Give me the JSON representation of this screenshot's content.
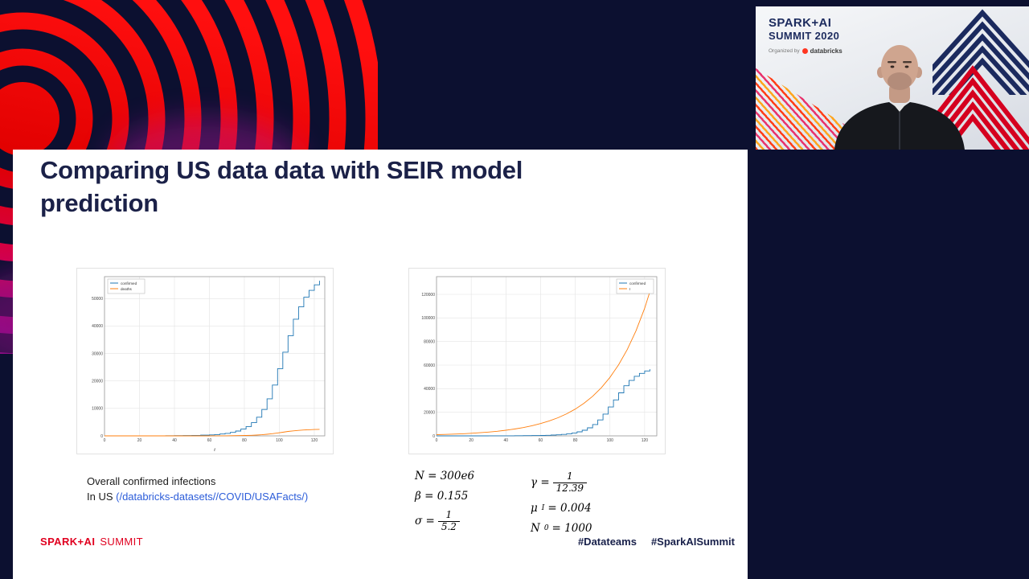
{
  "colors": {
    "background_navy": "#0c1030",
    "accent_red": "#e0001f",
    "title_navy": "#1b2148",
    "link_blue": "#2b5cd9",
    "series_blue": "#1f77b4",
    "series_orange": "#ff7f0e"
  },
  "slide": {
    "title_line1": "Comparing US data data with SEIR model",
    "title_line2": "prediction",
    "caption": {
      "line1": "Overall confirmed infections",
      "line2_prefix": "In US ",
      "link": "(/databricks-datasets//COVID/USAFacts/)"
    },
    "formulas": {
      "f1": "N = 300e6",
      "f2": "β = 0.155",
      "sigma_lhs": "σ =",
      "sigma_num": "1",
      "sigma_den": "5.2",
      "gamma_lhs": "γ =",
      "gamma_num": "1",
      "gamma_den": "12.39",
      "mu_base": "μ",
      "mu_sub": "I",
      "mu_rhs": "= 0.004",
      "n0_base": "N",
      "n0_sub": "0",
      "n0_rhs": "= 1000"
    },
    "footer": {
      "logo_bold": "SPARK+AI",
      "logo_light": "SUMMIT",
      "hashtag1": "#Datateams",
      "hashtag2": "#SparkAISummit"
    }
  },
  "video": {
    "brand_line1": "SPARK+AI",
    "brand_line2": "SUMMIT 2020",
    "organized_by": "Organized by",
    "org_name": "databricks"
  },
  "chart_data": [
    {
      "type": "line",
      "title": "",
      "xlabel": "t",
      "ylabel": "",
      "xlim": [
        0,
        126
      ],
      "ylim": [
        0,
        58000
      ],
      "xticks": [
        0,
        20,
        40,
        60,
        80,
        100,
        120
      ],
      "yticks": [
        0,
        10000,
        20000,
        30000,
        40000,
        50000
      ],
      "grid": true,
      "legend_position": "upper-left",
      "series": [
        {
          "name": "confirmed",
          "color": "#1f77b4",
          "step": true,
          "x": [
            0,
            5,
            10,
            15,
            20,
            25,
            30,
            35,
            40,
            45,
            50,
            55,
            60,
            63,
            66,
            69,
            72,
            75,
            78,
            81,
            84,
            87,
            90,
            93,
            96,
            99,
            102,
            105,
            108,
            111,
            114,
            117,
            120,
            123
          ],
          "y": [
            1,
            2,
            5,
            8,
            15,
            25,
            40,
            60,
            90,
            130,
            180,
            250,
            350,
            480,
            660,
            900,
            1250,
            1750,
            2450,
            3400,
            4800,
            6800,
            9600,
            13500,
            18500,
            24500,
            30500,
            36500,
            42500,
            47000,
            50500,
            53000,
            55000,
            56500
          ]
        },
        {
          "name": "deaths",
          "color": "#ff7f0e",
          "step": false,
          "x": [
            0,
            5,
            10,
            15,
            20,
            25,
            30,
            35,
            40,
            45,
            50,
            55,
            60,
            63,
            66,
            69,
            72,
            75,
            78,
            81,
            84,
            87,
            90,
            93,
            96,
            99,
            102,
            105,
            108,
            111,
            114,
            117,
            120,
            123
          ],
          "y": [
            0,
            0,
            0,
            0,
            0,
            0,
            1,
            2,
            3,
            5,
            7,
            10,
            14,
            20,
            28,
            39,
            55,
            77,
            108,
            150,
            210,
            295,
            410,
            575,
            805,
            1065,
            1330,
            1600,
            1830,
            2000,
            2130,
            2230,
            2310,
            2380
          ]
        }
      ]
    },
    {
      "type": "line",
      "title": "",
      "xlabel": "",
      "ylabel": "",
      "xlim": [
        0,
        127
      ],
      "ylim": [
        0,
        135000
      ],
      "xticks": [
        0,
        20,
        40,
        60,
        80,
        100,
        120
      ],
      "yticks": [
        0,
        20000,
        40000,
        60000,
        80000,
        100000,
        120000
      ],
      "grid": true,
      "legend_position": "upper-right",
      "series": [
        {
          "name": "confirmed",
          "color": "#1f77b4",
          "step": true,
          "x": [
            0,
            5,
            10,
            15,
            20,
            25,
            30,
            35,
            40,
            45,
            50,
            55,
            60,
            63,
            66,
            69,
            72,
            75,
            78,
            81,
            84,
            87,
            90,
            93,
            96,
            99,
            102,
            105,
            108,
            111,
            114,
            117,
            120,
            123
          ],
          "y": [
            1,
            2,
            5,
            8,
            15,
            25,
            40,
            60,
            90,
            130,
            180,
            250,
            350,
            480,
            660,
            900,
            1250,
            1750,
            2450,
            3400,
            4800,
            6800,
            9600,
            13500,
            18500,
            24500,
            30500,
            36500,
            42500,
            47000,
            50500,
            53000,
            55000,
            56500
          ]
        },
        {
          "name": "I",
          "color": "#ff7f0e",
          "step": false,
          "x": [
            0,
            5,
            10,
            15,
            20,
            25,
            30,
            35,
            40,
            45,
            50,
            55,
            60,
            65,
            70,
            75,
            80,
            85,
            90,
            95,
            100,
            105,
            110,
            115,
            120,
            125
          ],
          "y": [
            1000,
            1220,
            1480,
            1800,
            2180,
            2650,
            3230,
            3920,
            4770,
            5790,
            7040,
            8560,
            10400,
            12650,
            15370,
            18680,
            22710,
            27600,
            33550,
            40780,
            49570,
            60260,
            73250,
            89030,
            108220,
            131540
          ]
        }
      ]
    }
  ]
}
